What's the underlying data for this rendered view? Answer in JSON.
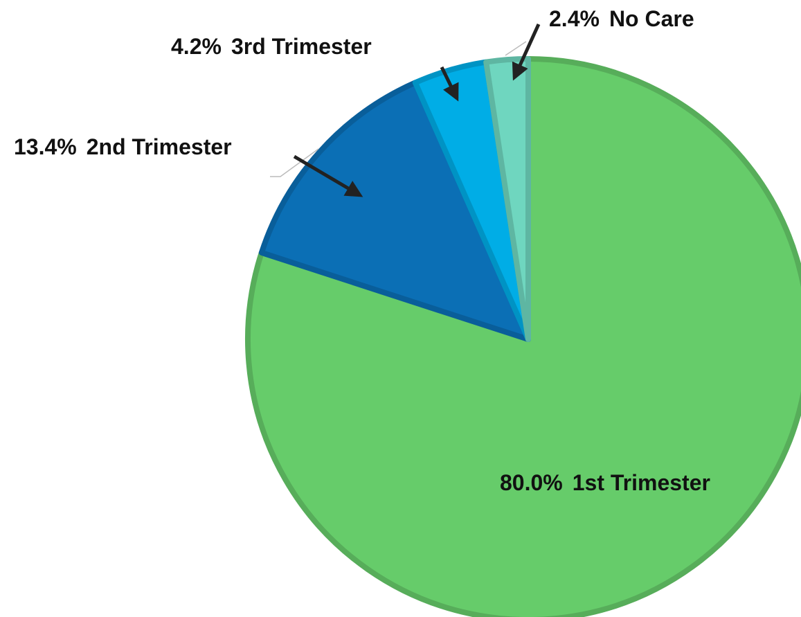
{
  "chart_data": {
    "type": "pie",
    "categories": [
      "1st Trimester",
      "2nd Trimester",
      "3rd Trimester",
      "No Care"
    ],
    "values": [
      80.0,
      13.4,
      4.2,
      2.4
    ],
    "value_labels": [
      "80.0%",
      "13.4%",
      "4.2%",
      "2.4%"
    ],
    "colors": [
      "#66cc6a",
      "#0b6fb5",
      "#00ade6",
      "#6fd6bf"
    ]
  }
}
